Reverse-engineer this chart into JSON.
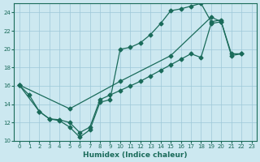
{
  "title": "",
  "xlabel": "Humidex (Indice chaleur)",
  "ylabel": "",
  "bg_color": "#cce8f0",
  "line_color": "#1a6b5a",
  "grid_color": "#9dc8d8",
  "xlim": [
    -0.5,
    23.5
  ],
  "ylim": [
    10,
    25
  ],
  "xticks": [
    0,
    1,
    2,
    3,
    4,
    5,
    6,
    7,
    8,
    9,
    10,
    11,
    12,
    13,
    14,
    15,
    16,
    17,
    18,
    19,
    20,
    21,
    22,
    23
  ],
  "yticks": [
    10,
    12,
    14,
    16,
    18,
    20,
    22,
    24
  ],
  "line1_x": [
    0,
    1,
    2,
    3,
    4,
    5,
    6,
    7,
    8,
    9,
    10,
    11,
    12,
    13,
    14,
    15,
    16,
    17,
    18,
    19,
    20
  ],
  "line1_y": [
    16.1,
    15.0,
    13.2,
    12.4,
    12.2,
    11.5,
    10.4,
    11.2,
    14.2,
    14.5,
    20.0,
    20.2,
    20.7,
    21.6,
    22.8,
    24.2,
    24.4,
    24.7,
    25.0,
    23.0,
    23.2
  ],
  "line2_x": [
    0,
    2,
    3,
    4,
    5,
    6,
    7,
    8,
    9,
    10,
    11,
    12,
    13,
    14,
    15,
    16,
    17,
    18,
    19,
    20,
    21,
    22
  ],
  "line2_y": [
    16.1,
    13.2,
    12.4,
    12.3,
    12.0,
    10.9,
    11.5,
    14.5,
    15.0,
    15.5,
    16.0,
    16.5,
    17.1,
    17.7,
    18.3,
    18.9,
    19.5,
    19.1,
    22.8,
    23.0,
    19.3,
    19.5
  ],
  "line3_x": [
    0,
    5,
    10,
    15,
    19,
    20,
    21,
    22
  ],
  "line3_y": [
    16.1,
    13.5,
    16.5,
    19.3,
    23.5,
    23.0,
    19.5,
    19.5
  ]
}
